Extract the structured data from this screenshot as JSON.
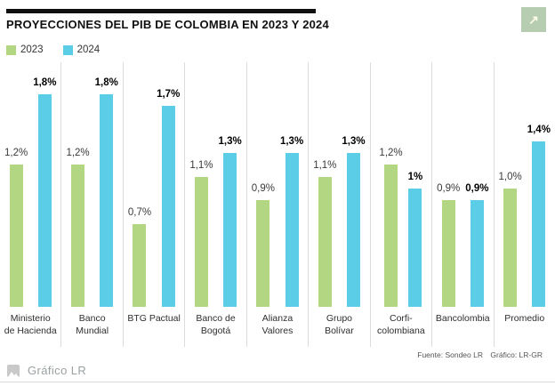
{
  "header": {
    "title": "PROYECCIONES DEL PIB DE COLOMBIA EN 2023 Y 2024",
    "legend": [
      {
        "label": "2023",
        "color": "#b3d683"
      },
      {
        "label": "2024",
        "color": "#5ccde6"
      }
    ],
    "external_link_icon": "arrow-up-right",
    "external_link_bg": "#b7cdb1"
  },
  "chart_data": {
    "type": "bar",
    "title": "PROYECCIONES DEL PIB DE COLOMBIA EN 2023 Y 2024",
    "unit": "%",
    "ylim": [
      0,
      2.0
    ],
    "grid": false,
    "legend_position": "top-left",
    "categories": [
      "Ministerio de Hacienda",
      "Banco Mundial",
      "BTG Pactual",
      "Banco de Bogotá",
      "Alianza Valores",
      "Grupo Bolívar",
      "Corficolombiana",
      "Bancolombia",
      "Promedio"
    ],
    "category_display": [
      "Ministerio\nde Hacienda",
      "Banco\nMundial",
      "BTG Pactual",
      "Banco de\nBogotá",
      "Alianza\nValores",
      "Grupo\nBolívar",
      "Corfi-\ncolombiana",
      "Bancolombia",
      "Promedio"
    ],
    "series": [
      {
        "name": "2023",
        "color": "#b3d683",
        "values": [
          1.2,
          1.2,
          0.7,
          1.1,
          0.9,
          1.1,
          1.2,
          0.9,
          1.0
        ],
        "labels": [
          "1,2%",
          "1,2%",
          "0,7%",
          "1,1%",
          "0,9%",
          "1,1%",
          "1,2%",
          "0,9%",
          "1,0%"
        ]
      },
      {
        "name": "2024",
        "color": "#5ccde6",
        "values": [
          1.8,
          1.8,
          1.7,
          1.3,
          1.3,
          1.3,
          1.0,
          0.9,
          1.4
        ],
        "labels": [
          "1,8%",
          "1,8%",
          "1,7%",
          "1,3%",
          "1,3%",
          "1,3%",
          "1%",
          "0,9%",
          "1,4%"
        ]
      }
    ]
  },
  "footer": {
    "source": "Fuente: Sondeo LR",
    "credit": "Gráfico: LR-GR",
    "brand": "Gráfico LR",
    "brand_icon": "image-placeholder"
  }
}
